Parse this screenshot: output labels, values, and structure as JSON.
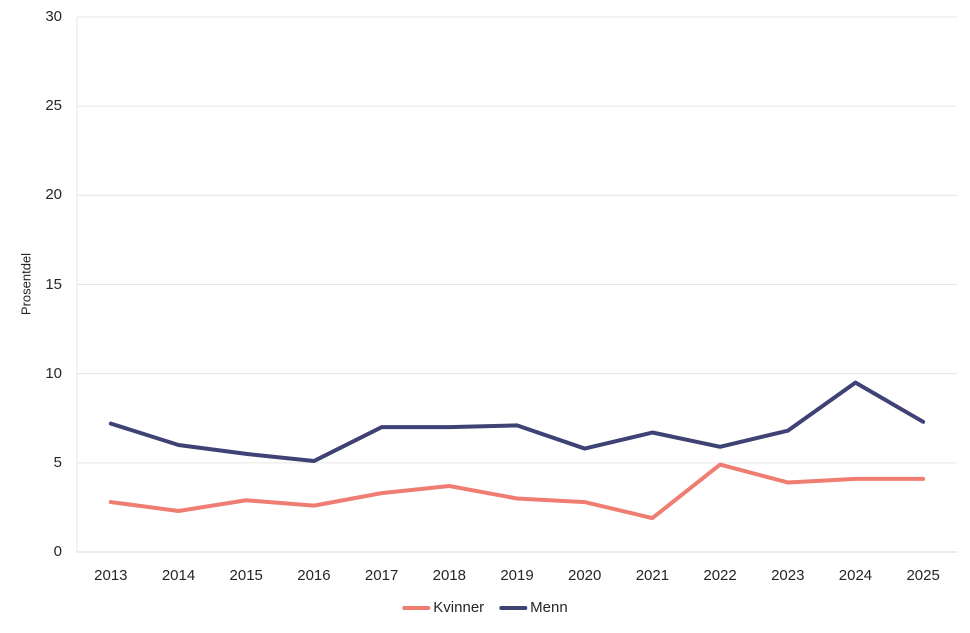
{
  "chart_data": {
    "type": "line",
    "categories": [
      "2013",
      "2014",
      "2015",
      "2016",
      "2017",
      "2018",
      "2019",
      "2020",
      "2021",
      "2022",
      "2023",
      "2024",
      "2025"
    ],
    "series": [
      {
        "name": "Kvinner",
        "color": "#EF7D72",
        "values": [
          2.8,
          2.3,
          2.9,
          2.6,
          3.3,
          3.7,
          3.0,
          2.8,
          1.9,
          4.9,
          3.9,
          4.1,
          4.1
        ]
      },
      {
        "name": "Menn",
        "color": "#3E4274",
        "values": [
          7.2,
          6.0,
          5.5,
          5.1,
          7.0,
          7.0,
          7.1,
          5.8,
          6.7,
          5.9,
          6.8,
          9.5,
          7.3
        ]
      }
    ],
    "title": "",
    "xlabel": "",
    "ylabel": "Prosentdel",
    "ylim": [
      0,
      30
    ],
    "yticks": [
      0,
      5,
      10,
      15,
      20,
      25,
      30
    ],
    "grid": true,
    "legend_position": "bottom"
  },
  "colors": {
    "grid": "#e6e6e6",
    "axis": "#d6d6d6",
    "text": "#262626",
    "background": "#ffffff"
  }
}
